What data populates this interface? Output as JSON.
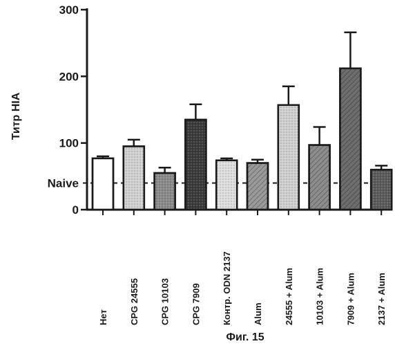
{
  "chart_data": {
    "type": "bar",
    "title": "",
    "caption": "Фиг. 15",
    "ylabel": "Титр HIA",
    "xlabel": "",
    "ylim": [
      0,
      300
    ],
    "yticks": [
      0,
      100,
      200,
      300
    ],
    "reference_line": {
      "label": "Naive",
      "value": 40,
      "style": "dashed"
    },
    "categories": [
      "Нет",
      "CPG 24555",
      "CPG 10103",
      "CPG 7909",
      "Контр. ODN 2137",
      "Alum",
      "24555 + Alum",
      "10103 + Alum",
      "7909 + Alum",
      "2137 + Alum"
    ],
    "values": [
      77,
      95,
      55,
      135,
      74,
      70,
      157,
      97,
      212,
      60
    ],
    "errors": [
      3,
      10,
      8,
      23,
      3,
      5,
      28,
      27,
      54,
      6
    ],
    "fills": [
      {
        "pattern": "none",
        "color": "#ffffff"
      },
      {
        "pattern": "dots",
        "color": "#d0d0d0"
      },
      {
        "pattern": "dots",
        "color": "#8a8a8a"
      },
      {
        "pattern": "dots",
        "color": "#3a3a3a"
      },
      {
        "pattern": "dots",
        "color": "#dedede"
      },
      {
        "pattern": "diag",
        "color": "#9a9a9a"
      },
      {
        "pattern": "dots",
        "color": "#cfcfcf"
      },
      {
        "pattern": "diag",
        "color": "#8d8d8d"
      },
      {
        "pattern": "diag",
        "color": "#6e6e6e"
      },
      {
        "pattern": "dots",
        "color": "#5a5a5a"
      }
    ],
    "grid": false,
    "legend": "none"
  }
}
